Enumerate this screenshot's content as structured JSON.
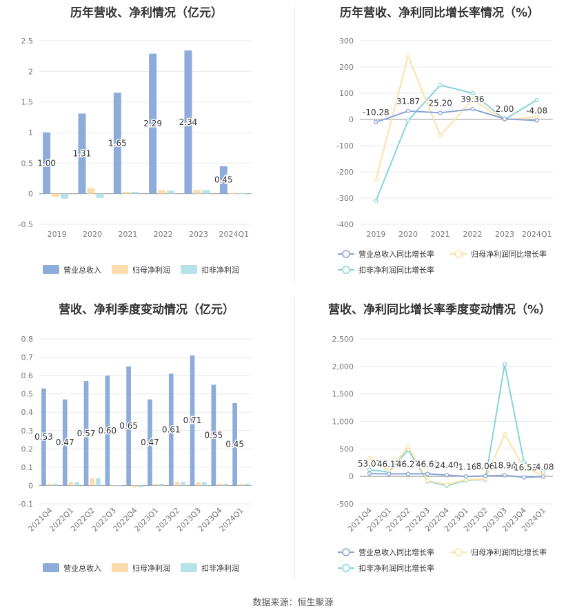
{
  "colors": {
    "revenue": "#8eacdb",
    "parent_np": "#fbdcac",
    "deducted_np": "#b5e3e8",
    "rev_growth": "#8aa4d6",
    "parent_growth": "#fde0a5",
    "deducted_growth": "#86d3da"
  },
  "source": "数据来源：恒生聚源",
  "chart_data": [
    {
      "id": "annual_values",
      "type": "bar",
      "title": "历年营收、净利情况（亿元）",
      "categories": [
        "2019",
        "2020",
        "2021",
        "2022",
        "2023",
        "2024Q1"
      ],
      "ylim": [
        -0.5,
        2.5
      ],
      "yticks": [
        "2.5",
        "2",
        "1.5",
        "1",
        "0.5",
        "0",
        "-0.5"
      ],
      "ytick_values": [
        2.5,
        2,
        1.5,
        1,
        0.5,
        0,
        -0.5
      ],
      "series": [
        {
          "name": "营业总收入",
          "color_key": "revenue",
          "values": [
            1.0,
            1.31,
            1.65,
            2.29,
            2.34,
            0.45
          ],
          "labels": [
            "1.00",
            "1.31",
            "1.65",
            "2.29",
            "2.34",
            "0.45"
          ]
        },
        {
          "name": "归母净利润",
          "color_key": "parent_np",
          "values": [
            -0.05,
            0.09,
            0.03,
            0.06,
            0.06,
            0.01
          ]
        },
        {
          "name": "扣非净利润",
          "color_key": "deducted_np",
          "values": [
            -0.08,
            -0.07,
            0.03,
            0.05,
            0.06,
            0.01
          ]
        }
      ],
      "legend": "bottom",
      "grid": true
    },
    {
      "id": "annual_growth",
      "type": "line",
      "title": "历年营收、净利同比增长率情况（%）",
      "categories": [
        "2019",
        "2020",
        "2021",
        "2022",
        "2023",
        "2024Q1"
      ],
      "ylim": [
        -400,
        300
      ],
      "yticks": [
        "300",
        "200",
        "100",
        "0",
        "-100",
        "-200",
        "-300",
        "-400"
      ],
      "ytick_values": [
        300,
        200,
        100,
        0,
        -100,
        -200,
        -300,
        -400
      ],
      "series": [
        {
          "name": "营业总收入同比增长率",
          "color_key": "rev_growth",
          "values": [
            -10.28,
            31.87,
            25.2,
            39.36,
            2.0,
            -4.08
          ],
          "labels": [
            "-10.28",
            "31.87",
            "25.20",
            "39.36",
            "2.00",
            "-4.08"
          ]
        },
        {
          "name": "归母净利润同比增长率",
          "color_key": "parent_growth",
          "values": [
            -230,
            242,
            -62,
            75,
            -2,
            10
          ]
        },
        {
          "name": "扣非净利润同比增长率",
          "color_key": "deducted_growth",
          "values": [
            -310,
            -4,
            131,
            100,
            0,
            74
          ]
        }
      ],
      "legend": "bottom",
      "grid": true
    },
    {
      "id": "quarterly_values",
      "type": "bar",
      "title": "营收、净利季度变动情况（亿元）",
      "categories": [
        "2021Q4",
        "2022Q1",
        "2022Q2",
        "2022Q3",
        "2022Q4",
        "2023Q1",
        "2023Q2",
        "2023Q3",
        "2023Q4",
        "2024Q1"
      ],
      "ylim": [
        -0.1,
        0.8
      ],
      "yticks": [
        "0.8",
        "0.7",
        "0.6",
        "0.5",
        "0.4",
        "0.3",
        "0.2",
        "0.1",
        "0",
        "-0.1"
      ],
      "ytick_values": [
        0.8,
        0.7,
        0.6,
        0.5,
        0.4,
        0.3,
        0.2,
        0.1,
        0,
        -0.1
      ],
      "series": [
        {
          "name": "营业总收入",
          "color_key": "revenue",
          "values": [
            0.53,
            0.47,
            0.57,
            0.6,
            0.65,
            0.47,
            0.61,
            0.71,
            0.55,
            0.45
          ],
          "labels": [
            "0.53",
            "0.47",
            "0.57",
            "0.60",
            "0.65",
            "0.47",
            "0.61",
            "0.71",
            "0.55",
            "0.45"
          ]
        },
        {
          "name": "归母净利润",
          "color_key": "parent_np",
          "values": [
            0.01,
            0.02,
            0.04,
            0.0,
            -0.01,
            0.01,
            0.02,
            0.02,
            0.01,
            0.01
          ]
        },
        {
          "name": "扣非净利润",
          "color_key": "deducted_np",
          "values": [
            0.01,
            0.02,
            0.04,
            0.0,
            -0.01,
            0.01,
            0.02,
            0.02,
            0.01,
            0.01
          ]
        }
      ],
      "legend": "bottom",
      "grid": true
    },
    {
      "id": "quarterly_growth",
      "type": "line",
      "title": "营收、净利同比增长率季度变动情况（%）",
      "categories": [
        "2021Q4",
        "2022Q1",
        "2022Q2",
        "2022Q3",
        "2022Q4",
        "2023Q1",
        "2023Q2",
        "2023Q3",
        "2023Q4",
        "2024Q1"
      ],
      "ylim": [
        -500,
        2500
      ],
      "yticks": [
        "2,500",
        "2,000",
        "1,500",
        "1,000",
        "500",
        "0",
        "-500"
      ],
      "ytick_values": [
        2500,
        2000,
        1500,
        1000,
        500,
        0,
        -500
      ],
      "series": [
        {
          "name": "营业总收入同比增长率",
          "color_key": "rev_growth",
          "values": [
            53.07,
            46.12,
            46.27,
            46.65,
            24.4,
            -1.16,
            8.06,
            18.94,
            -16.53,
            -4.08
          ],
          "labels": [
            "53.07",
            "46.12",
            "46.27",
            "46.65",
            "24.40",
            "-1.16",
            "8.06",
            "18.94",
            "-16.53",
            "-4.08"
          ]
        },
        {
          "name": "归母净利润同比增长率",
          "color_key": "parent_growth",
          "values": [
            330,
            100,
            540,
            -80,
            -150,
            -60,
            -50,
            770,
            150,
            30
          ]
        },
        {
          "name": "扣非净利润同比增长率",
          "color_key": "deducted_growth",
          "values": [
            120,
            80,
            480,
            -90,
            -170,
            -70,
            -60,
            2040,
            260,
            80
          ]
        }
      ],
      "legend": "bottom",
      "grid": true
    }
  ]
}
